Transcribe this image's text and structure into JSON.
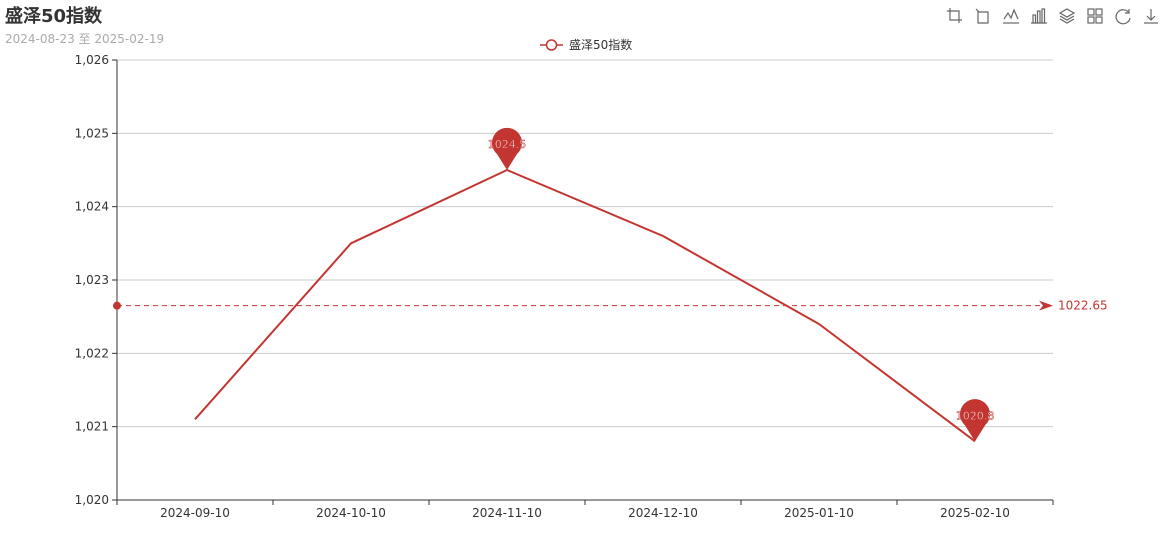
{
  "title": "盛泽50指数",
  "subtitle": "2024-08-23 至 2025-02-19",
  "toolbox": [
    "crop-icon",
    "undo-zoom-icon",
    "line-chart-icon",
    "bar-chart-icon",
    "stack-icon",
    "tiled-icon",
    "restore-icon",
    "download-icon"
  ],
  "colors": {
    "series": "#c23531",
    "grid": "#cccccc",
    "axis": "#333333"
  },
  "chart_data": {
    "type": "line",
    "series": [
      {
        "name": "盛泽50指数",
        "x": [
          "2024-09-10",
          "2024-10-10",
          "2024-11-10",
          "2024-12-10",
          "2025-01-10",
          "2025-02-10"
        ],
        "values": [
          1021.1,
          1023.5,
          1024.5,
          1023.6,
          1022.4,
          1020.8
        ]
      }
    ],
    "categories": [
      "2024-09-10",
      "2024-10-10",
      "2024-11-10",
      "2024-12-10",
      "2025-01-10",
      "2025-02-10"
    ],
    "ylim": [
      1020,
      1026
    ],
    "yticks": [
      "1,020",
      "1,021",
      "1,022",
      "1,023",
      "1,024",
      "1,025",
      "1,026"
    ],
    "mark_points": [
      {
        "label": "1024.5",
        "category": "2024-11-10",
        "value": 1024.5
      },
      {
        "label": "1020.8",
        "category": "2025-02-10",
        "value": 1020.8
      }
    ],
    "mark_line": {
      "label": "1022.65",
      "value": 1022.65
    },
    "legend_position": "top-center",
    "grid": true
  }
}
